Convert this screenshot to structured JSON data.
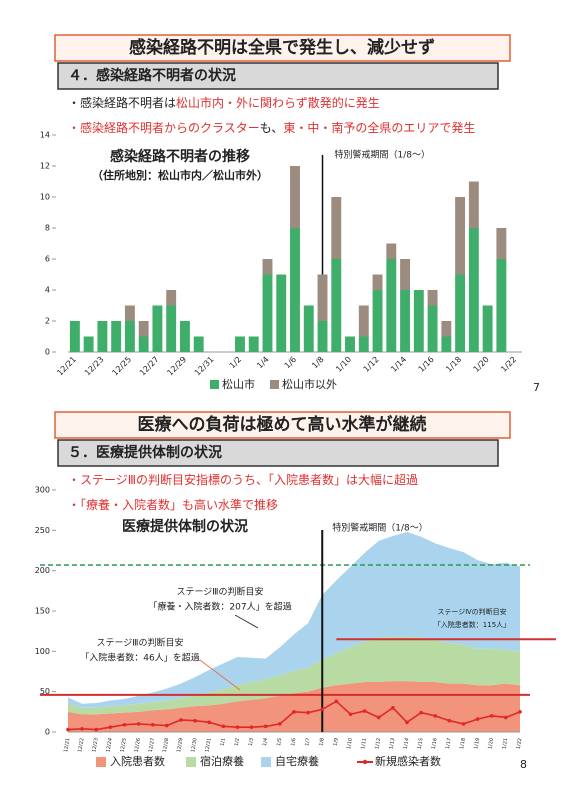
{
  "sections": [
    {
      "banner": "感染経路不明は全県で発生し、減少せず",
      "heading": "４．感染経路不明者の状況",
      "bullets": [
        {
          "segments": [
            {
              "text": "・感染経路不明者は",
              "red": false
            },
            {
              "text": "松山市内・外に関わらず散発的に発生",
              "red": true
            }
          ]
        },
        {
          "segments": [
            {
              "text": "・感染経路不明者からのクラスター",
              "red": true
            },
            {
              "text": "も、",
              "red": false
            },
            {
              "text": "東・中・南予の全県のエリアで発生",
              "red": true
            }
          ]
        }
      ]
    },
    {
      "banner": "医療への負荷は極めて高い水準が継続",
      "heading": "５．医療提供体制の状況",
      "bullets": [
        {
          "segments": [
            {
              "text": "・ステージⅢの判断目安指標のうち、「入院患者数」は大幅に超過",
              "red": true
            }
          ]
        },
        {
          "segments": [
            {
              "text": "・「療養・入院者数」も高い水準で推移",
              "red": true
            }
          ]
        }
      ]
    }
  ],
  "chart_data": [
    {
      "type": "stacked-bar",
      "title": "感染経路不明者の推移",
      "subtitle": "（住所地別：松山市内／松山市外）",
      "annotation": "特別警戒期間（1/8～）",
      "period_start": "1/8",
      "page_number": "7",
      "categories": [
        "12/21",
        null,
        "12/23",
        null,
        "12/25",
        null,
        "12/27",
        null,
        "12/29",
        null,
        "12/31",
        null,
        "1/2",
        null,
        "1/4",
        null,
        "1/6",
        null,
        "1/8",
        null,
        "1/10",
        null,
        "1/12",
        null,
        "1/14",
        null,
        "1/16",
        null,
        "1/18",
        null,
        "1/20",
        null,
        "1/22"
      ],
      "series": [
        {
          "name": "松山市",
          "color": "#3fae6a",
          "values": [
            2,
            1,
            2,
            2,
            2,
            1,
            3,
            3,
            2,
            1,
            0,
            0,
            1,
            1,
            5,
            5,
            8,
            3,
            2,
            6,
            1,
            1,
            4,
            6,
            4,
            4,
            3,
            1,
            5,
            8,
            3,
            6,
            0
          ]
        },
        {
          "name": "松山市以外",
          "color": "#9c8c80",
          "values": [
            0,
            0,
            0,
            0,
            1,
            1,
            0,
            1,
            0,
            0,
            0,
            0,
            0,
            0,
            1,
            0,
            4,
            0,
            3,
            4,
            0,
            2,
            1,
            1,
            2,
            0,
            1,
            1,
            5,
            3,
            0,
            2,
            0
          ]
        }
      ],
      "ylim": [
        0,
        14
      ],
      "yticks": [
        0,
        2,
        4,
        6,
        8,
        10,
        12,
        14
      ]
    },
    {
      "type": "stacked-area",
      "title": "医療提供体制の状況",
      "annotation": "特別警戒期間（1/8～）",
      "period_start": "1/8",
      "page_number": "8",
      "categories": [
        "12/21",
        "12/22",
        "12/23",
        "12/24",
        "12/25",
        "12/26",
        "12/27",
        "12/28",
        "12/29",
        "12/30",
        "12/31",
        "1/1",
        "1/2",
        "1/3",
        "1/4",
        "1/5",
        "1/6",
        "1/7",
        "1/8",
        "1/9",
        "1/10",
        "1/11",
        "1/12",
        "1/13",
        "1/14",
        "1/15",
        "1/16",
        "1/17",
        "1/18",
        "1/19",
        "1/20",
        "1/21",
        "1/22"
      ],
      "series": [
        {
          "name": "入院患者数",
          "color": "#f2937c",
          "values": [
            25,
            22,
            22,
            23,
            24,
            25,
            27,
            28,
            30,
            32,
            33,
            35,
            38,
            40,
            42,
            45,
            48,
            50,
            55,
            58,
            60,
            62,
            62,
            63,
            63,
            62,
            62,
            60,
            60,
            58,
            58,
            60,
            58
          ]
        },
        {
          "name": "宿泊療養",
          "color": "#b8dba3",
          "values": [
            10,
            8,
            8,
            9,
            9,
            10,
            10,
            11,
            12,
            14,
            16,
            18,
            20,
            22,
            24,
            25,
            28,
            30,
            35,
            40,
            45,
            50,
            55,
            55,
            55,
            55,
            52,
            50,
            48,
            45,
            45,
            42,
            42
          ]
        },
        {
          "name": "自宅療養",
          "color": "#aad4ee",
          "values": [
            8,
            5,
            6,
            7,
            8,
            10,
            12,
            15,
            18,
            22,
            28,
            32,
            35,
            30,
            25,
            35,
            45,
            55,
            80,
            90,
            100,
            110,
            120,
            125,
            130,
            125,
            120,
            118,
            115,
            110,
            105,
            108,
            105
          ]
        },
        {
          "name": "新規感染者数",
          "color": "#e02828",
          "line": true,
          "values": [
            3,
            4,
            3,
            6,
            9,
            10,
            9,
            8,
            15,
            14,
            12,
            7,
            6,
            6,
            7,
            10,
            25,
            24,
            28,
            38,
            22,
            26,
            18,
            30,
            12,
            24,
            20,
            14,
            10,
            16,
            20,
            18,
            25
          ]
        }
      ],
      "ylim": [
        0,
        300
      ],
      "yticks": [
        0,
        50,
        100,
        150,
        200,
        250,
        300
      ],
      "reference_lines": [
        {
          "value": 207,
          "color": "#2a9a55",
          "dashed": true,
          "texts": [
            "ステージⅢの判断目安",
            "「療養・入院者数：207人」を超過"
          ]
        },
        {
          "value": 46,
          "color": "#d03030",
          "texts": [
            "ステージⅢの判断目安",
            "「入院患者数：46人」を超過"
          ]
        },
        {
          "value": 115,
          "color": "#d03030",
          "from": "1/9",
          "texts": [
            "ステージⅣの判断目安",
            "「入院患者数：115人」"
          ]
        }
      ]
    }
  ]
}
